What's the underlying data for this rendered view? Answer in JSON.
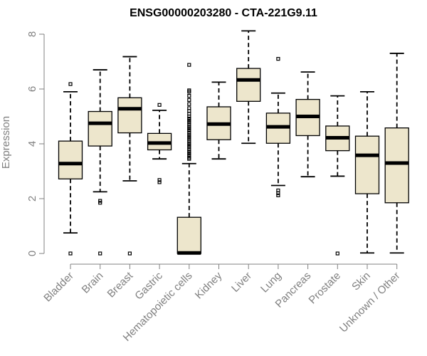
{
  "chart_data": {
    "type": "boxplot",
    "title": "ENSG00000203280 - CTA-221G9.11",
    "xlabel": "",
    "ylabel": "Expression",
    "ylim": [
      0,
      8.2
    ],
    "yticks": [
      0,
      2,
      4,
      6,
      8
    ],
    "categories": [
      "Bladder",
      "Brain",
      "Breast",
      "Gastric",
      "Hematopoietic cells",
      "Kidney",
      "Liver",
      "Lung",
      "Pancreas",
      "Prostate",
      "Skin",
      "Unknown / Other"
    ],
    "boxes": [
      {
        "whisker_low": 0.75,
        "q1": 2.72,
        "median": 3.28,
        "q3": 4.1,
        "whisker_high": 5.9,
        "outliers": [
          0,
          6.18
        ]
      },
      {
        "whisker_low": 2.25,
        "q1": 3.92,
        "median": 4.75,
        "q3": 5.18,
        "whisker_high": 6.7,
        "outliers": [
          0,
          1.85,
          1.92
        ]
      },
      {
        "whisker_low": 2.65,
        "q1": 4.4,
        "median": 5.28,
        "q3": 5.68,
        "whisker_high": 7.18,
        "outliers": [
          0
        ]
      },
      {
        "whisker_low": 3.45,
        "q1": 3.78,
        "median": 4.03,
        "q3": 4.38,
        "whisker_high": 5.22,
        "outliers": [
          2.6,
          2.68,
          5.42
        ]
      },
      {
        "whisker_low": 0,
        "q1": 0,
        "median": 0.02,
        "q3": 1.32,
        "whisker_high": 3.28,
        "outliers": [
          3.45,
          3.5,
          3.58,
          3.65,
          3.72,
          3.8,
          3.88,
          3.95,
          4.02,
          4.1,
          4.18,
          4.25,
          4.32,
          4.4,
          4.48,
          4.55,
          4.62,
          4.7,
          4.78,
          4.85,
          4.92,
          5.0,
          5.1,
          5.2,
          5.3,
          5.45,
          5.6,
          5.75,
          5.9,
          5.95,
          6.88
        ]
      },
      {
        "whisker_low": 3.45,
        "q1": 4.15,
        "median": 4.72,
        "q3": 5.35,
        "whisker_high": 6.25,
        "outliers": []
      },
      {
        "whisker_low": 4.02,
        "q1": 5.55,
        "median": 6.33,
        "q3": 6.75,
        "whisker_high": 8.12,
        "outliers": []
      },
      {
        "whisker_low": 2.48,
        "q1": 4.02,
        "median": 4.62,
        "q3": 5.12,
        "whisker_high": 5.85,
        "outliers": [
          2.12,
          2.2,
          2.3,
          7.1
        ]
      },
      {
        "whisker_low": 2.8,
        "q1": 4.3,
        "median": 5.0,
        "q3": 5.62,
        "whisker_high": 6.62,
        "outliers": []
      },
      {
        "whisker_low": 2.82,
        "q1": 3.75,
        "median": 4.22,
        "q3": 4.65,
        "whisker_high": 5.75,
        "outliers": [
          0
        ]
      },
      {
        "whisker_low": 0.02,
        "q1": 2.18,
        "median": 3.58,
        "q3": 4.28,
        "whisker_high": 5.9,
        "outliers": []
      },
      {
        "whisker_low": 0.02,
        "q1": 1.85,
        "median": 3.3,
        "q3": 4.58,
        "whisker_high": 7.3,
        "outliers": []
      }
    ],
    "box_fill": "#ede6cc",
    "axis_color": "#808080",
    "grid": false
  }
}
